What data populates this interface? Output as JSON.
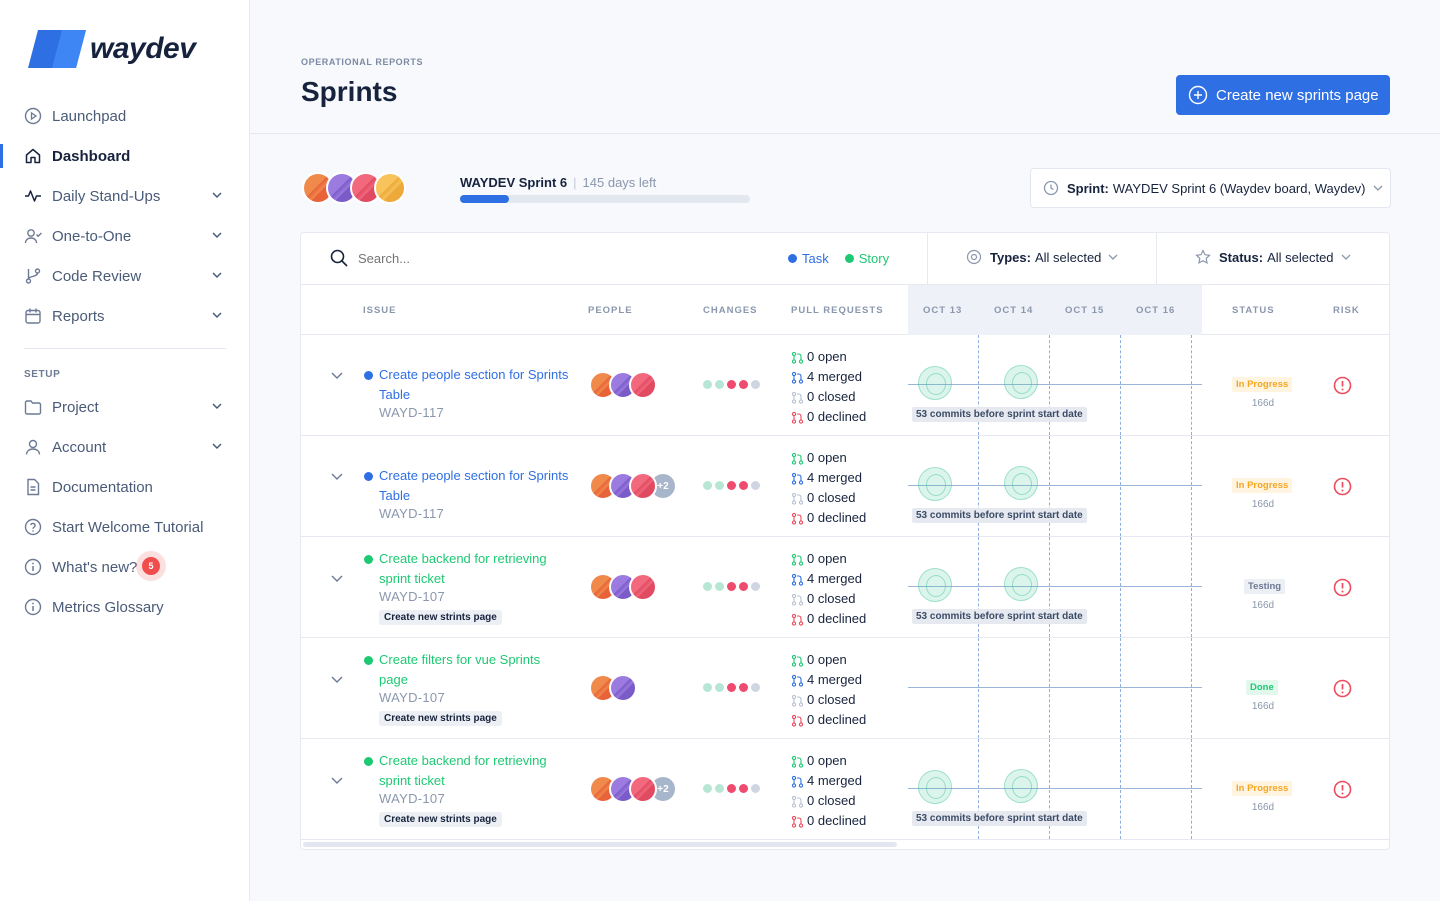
{
  "app": {
    "logo_text": "waydev",
    "brand_color": "#2f6fe4"
  },
  "sidebar": {
    "items": [
      {
        "label": "Launchpad",
        "icon": "play-circle-icon",
        "chevron": false,
        "active": false
      },
      {
        "label": "Dashboard",
        "icon": "home-icon",
        "chevron": false,
        "active": true
      },
      {
        "label": "Daily Stand-Ups",
        "icon": "activity-icon",
        "chevron": true,
        "active": false
      },
      {
        "label": "One-to-One",
        "icon": "user-check-icon",
        "chevron": true,
        "active": false
      },
      {
        "label": "Code Review",
        "icon": "git-branch-icon",
        "chevron": true,
        "active": false
      },
      {
        "label": "Reports",
        "icon": "calendar-icon",
        "chevron": true,
        "active": false
      }
    ],
    "setup_label": "SETUP",
    "setup_items": [
      {
        "label": "Project",
        "icon": "folder-icon",
        "chevron": true
      },
      {
        "label": "Account",
        "icon": "user-icon",
        "chevron": true
      },
      {
        "label": "Documentation",
        "icon": "file-icon",
        "chevron": false
      },
      {
        "label": "Start Welcome Tutorial",
        "icon": "help-circle-icon",
        "chevron": false
      },
      {
        "label": "What's new?",
        "icon": "info-icon",
        "chevron": false,
        "badge": "5"
      },
      {
        "label": "Metrics Glossary",
        "icon": "info-icon",
        "chevron": false
      }
    ]
  },
  "header": {
    "breadcrumb": "OPERATIONAL REPORTS",
    "title": "Sprints",
    "create_button": "Create new sprints page"
  },
  "sprint": {
    "name": "WAYDEV Sprint 6",
    "separator": "|",
    "days_left": "145 days left",
    "progress": 0.17,
    "selector_label": "Sprint:",
    "selector_value": "WAYDEV Sprint 6 (Waydev board, Waydev)"
  },
  "filters": {
    "search_placeholder": "Search...",
    "legend": [
      {
        "label": "Task",
        "color": "#2f6fe4"
      },
      {
        "label": "Story",
        "color": "#1ec973"
      }
    ],
    "types_label": "Types:",
    "types_value": "All selected",
    "status_label": "Status:",
    "status_value": "All selected"
  },
  "table": {
    "headers": {
      "issue": "ISSUE",
      "people": "PEOPLE",
      "changes": "CHANGES",
      "pull_requests": "PULL REQUESTS",
      "dates": [
        "OCT 13",
        "OCT 14",
        "OCT 15",
        "OCT 16"
      ],
      "status": "STATUS",
      "risk": "RISK"
    },
    "rows": [
      {
        "type": "Task",
        "title": "Create people section for Sprints Table",
        "key": "WAYD-117",
        "tag": "",
        "extra_people": "",
        "people_count": 3,
        "prs": [
          "0 open",
          "4 merged",
          "0 closed",
          "0 declined"
        ],
        "commits_label": "53 commits before sprint start date",
        "show_commits": true,
        "status": "In Progress",
        "status_days": "166d"
      },
      {
        "type": "Task",
        "title": "Create people section for Sprints Table",
        "key": "WAYD-117",
        "tag": "",
        "extra_people": "+2",
        "people_count": 3,
        "prs": [
          "0 open",
          "4 merged",
          "0 closed",
          "0 declined"
        ],
        "commits_label": "53 commits before sprint start date",
        "show_commits": true,
        "status": "In Progress",
        "status_days": "166d"
      },
      {
        "type": "Story",
        "title": "Create backend for retrieving sprint ticket",
        "key": "WAYD-107",
        "tag": "Create new strints page",
        "extra_people": "",
        "people_count": 3,
        "prs": [
          "0 open",
          "4 merged",
          "0 closed",
          "0 declined"
        ],
        "commits_label": "53 commits before sprint start date",
        "show_commits": true,
        "status": "Testing",
        "status_days": "166d"
      },
      {
        "type": "Story",
        "title": "Create filters for vue Sprints page",
        "key": "WAYD-107",
        "tag": "Create new strints page",
        "extra_people": "",
        "people_count": 2,
        "prs": [
          "0 open",
          "4 merged",
          "0 closed",
          "0 declined"
        ],
        "commits_label": "",
        "show_commits": false,
        "status": "Done",
        "status_days": "166d"
      },
      {
        "type": "Story",
        "title": "Create backend for retrieving sprint ticket",
        "key": "WAYD-107",
        "tag": "Create new strints page",
        "extra_people": "+2",
        "people_count": 3,
        "prs": [
          "0 open",
          "4 merged",
          "0 closed",
          "0 declined"
        ],
        "commits_label": "53 commits before sprint start date",
        "show_commits": true,
        "status": "In Progress",
        "status_days": "166d"
      }
    ]
  },
  "colors": {
    "task": "#2f6fe4",
    "story": "#1ec973",
    "status_in_progress_bg": "#fff4e0",
    "status_in_progress_fg": "#f5a623",
    "status_testing_bg": "#eceff4",
    "status_testing_fg": "#6c7a93",
    "status_done_bg": "#e2f8ec",
    "status_done_fg": "#1ec973",
    "risk": "#ef4b5e"
  }
}
